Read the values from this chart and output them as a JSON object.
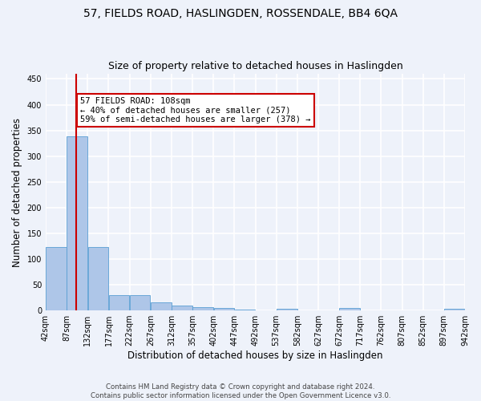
{
  "title1": "57, FIELDS ROAD, HASLINGDEN, ROSSENDALE, BB4 6QA",
  "title2": "Size of property relative to detached houses in Haslingden",
  "xlabel": "Distribution of detached houses by size in Haslingden",
  "ylabel": "Number of detached properties",
  "bin_edges": [
    42,
    87,
    132,
    177,
    222,
    267,
    312,
    357,
    402,
    447,
    492,
    537,
    582,
    627,
    672,
    717,
    762,
    807,
    852,
    897,
    942
  ],
  "bin_labels": [
    "42sqm",
    "87sqm",
    "132sqm",
    "177sqm",
    "222sqm",
    "267sqm",
    "312sqm",
    "357sqm",
    "402sqm",
    "447sqm",
    "492sqm",
    "537sqm",
    "582sqm",
    "627sqm",
    "672sqm",
    "717sqm",
    "762sqm",
    "807sqm",
    "852sqm",
    "897sqm",
    "942sqm"
  ],
  "bar_heights": [
    124,
    339,
    124,
    30,
    30,
    15,
    9,
    6,
    5,
    2,
    0,
    4,
    0,
    0,
    5,
    0,
    0,
    0,
    0,
    3
  ],
  "bar_color": "#aec6e8",
  "bar_edge_color": "#5a9fd4",
  "property_line_x": 108,
  "annotation_text": "57 FIELDS ROAD: 108sqm\n← 40% of detached houses are smaller (257)\n59% of semi-detached houses are larger (378) →",
  "annotation_box_color": "#ffffff",
  "annotation_box_edge_color": "#cc0000",
  "vline_color": "#cc0000",
  "ylim": [
    0,
    460
  ],
  "yticks": [
    0,
    50,
    100,
    150,
    200,
    250,
    300,
    350,
    400,
    450
  ],
  "bg_color": "#eef2fa",
  "grid_color": "#ffffff",
  "footnote": "Contains HM Land Registry data © Crown copyright and database right 2024.\nContains public sector information licensed under the Open Government Licence v3.0."
}
